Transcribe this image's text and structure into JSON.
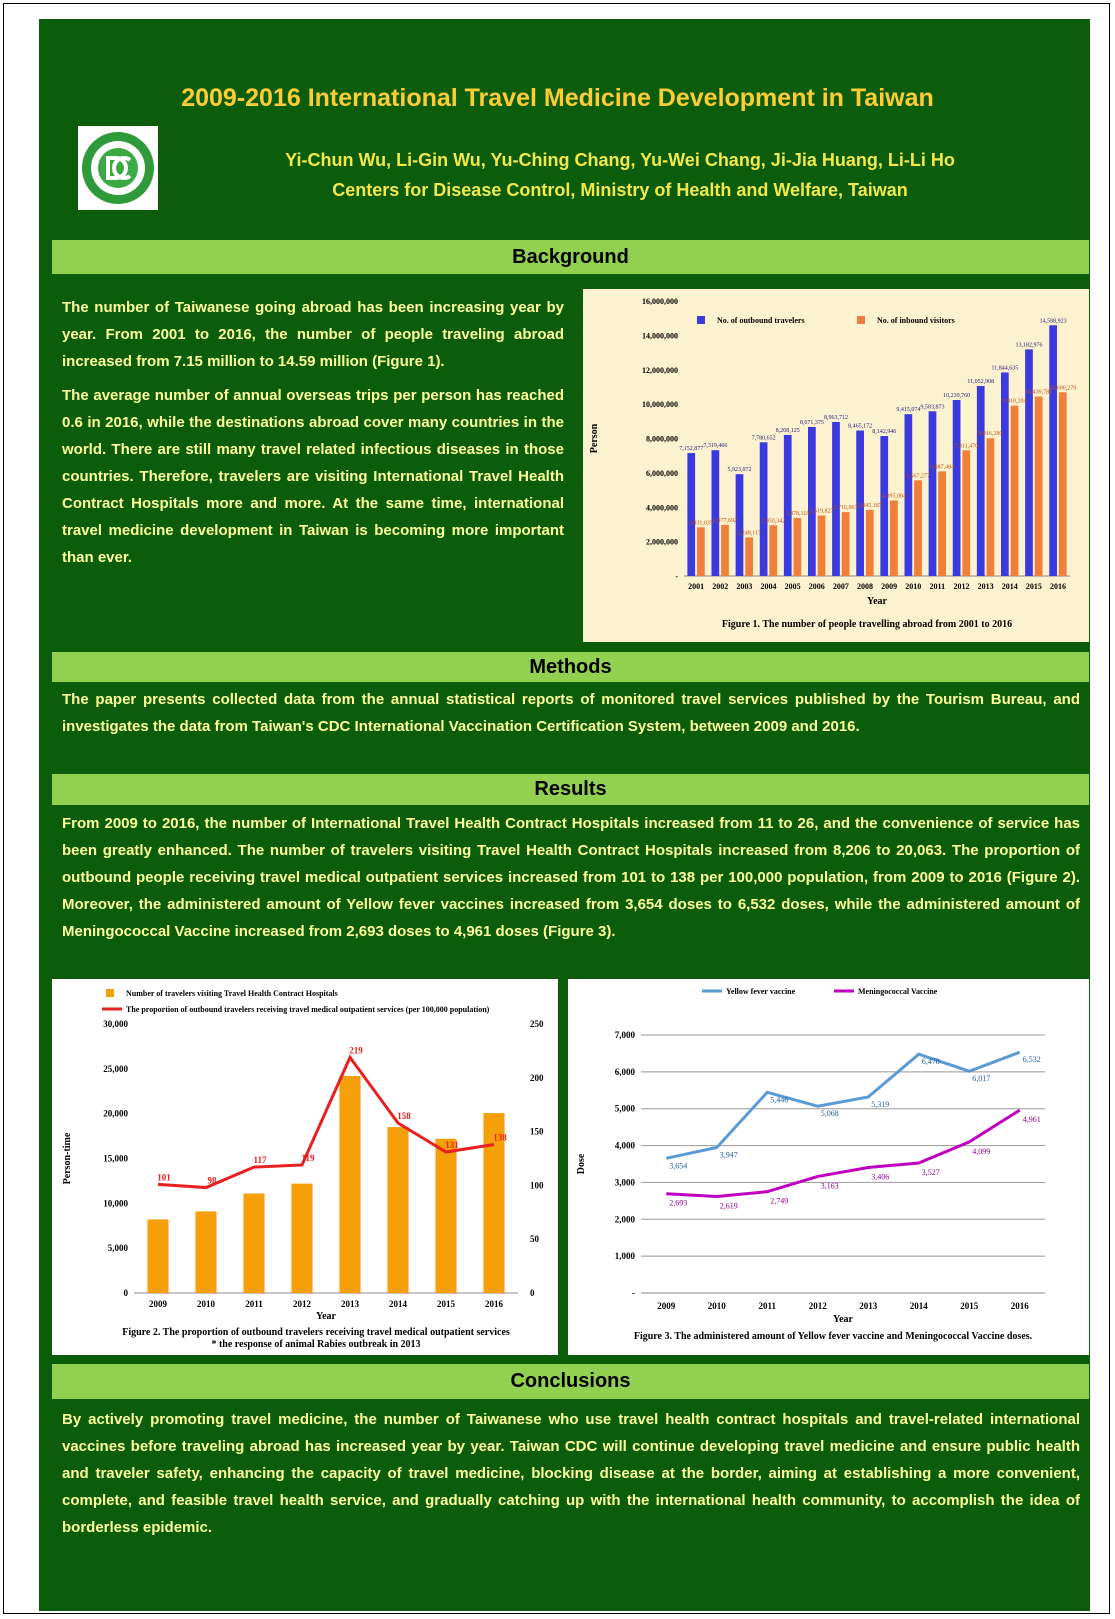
{
  "header": {
    "title": "2009-2016 International Travel Medicine Development in Taiwan",
    "authors": "Yi-Chun Wu, Li-Gin Wu, Yu-Ching Chang, Yu-Wei Chang, Ji-Jia Huang, Li-Li Ho",
    "affiliation": "Centers for Disease Control, Ministry of Health and Welfare, Taiwan"
  },
  "sections": [
    {
      "heading": "Background",
      "paragraphs": [
        "The number of Taiwanese going abroad has been increasing year by year. From 2001 to 2016, the number of people traveling abroad increased from 7.15 million to 14.59 million (Figure 1).",
        "The average number of annual overseas trips per person has reached 0.6 in 2016, while the destinations abroad cover many countries in the world. There are still many travel related infectious diseases in those countries. Therefore, travelers are visiting International Travel Health Contract Hospitals more and more. At the same time, international travel medicine development in Taiwan is becoming more important than ever."
      ]
    },
    {
      "heading": "Methods",
      "paragraphs": [
        "The paper presents collected data from the annual statistical reports of monitored travel services published by the Tourism Bureau, and investigates the data from Taiwan's CDC International Vaccination Certification System, between 2009 and 2016."
      ]
    },
    {
      "heading": "Results",
      "paragraphs": [
        "From 2009 to 2016, the number of International Travel Health Contract Hospitals increased from 11 to 26, and the convenience of service has been greatly enhanced. The number of travelers visiting Travel Health Contract Hospitals increased from 8,206 to 20,063. The proportion of outbound people receiving travel medical outpatient services increased from 101 to 138 per 100,000 population, from 2009 to 2016 (Figure 2). Moreover, the administered amount of Yellow fever vaccines increased from 3,654 doses to 6,532 doses, while the administered amount of Meningococcal Vaccine increased from 2,693 doses to 4,961 doses (Figure 3)."
      ]
    },
    {
      "heading": "Conclusions",
      "paragraphs": [
        "By actively promoting travel medicine, the number of Taiwanese who use travel health contract hospitals and travel-related international vaccines before traveling abroad has increased year by year. Taiwan CDC will continue developing travel medicine and ensure public health and traveler safety, enhancing the capacity of travel medicine, blocking disease at the border, aiming at establishing a more convenient, complete, and feasible travel health service, and gradually catching up with the international health community, to accomplish the idea of borderless epidemic."
      ]
    }
  ],
  "chart_data": [
    {
      "type": "bar",
      "caption": [
        "Figure 1.  The number of people travelling abroad from 2001 to 2016"
      ],
      "xlabel": "Year",
      "ylabel": "Person",
      "categories": [
        "2001",
        "2002",
        "2003",
        "2004",
        "2005",
        "2006",
        "2007",
        "2008",
        "2009",
        "2010",
        "2011",
        "2012",
        "2013",
        "2014",
        "2015",
        "2016"
      ],
      "series": [
        {
          "name": "No. of outbound travelers",
          "color": "#3a3ae0",
          "values": [
            7152877,
            7319466,
            5923072,
            7780652,
            8208125,
            8671375,
            8963712,
            8465172,
            8142946,
            9415074,
            9583873,
            10239760,
            11052908,
            11844635,
            13182976,
            14588923
          ],
          "value_labels": [
            "7,152,877",
            "7,319,466",
            "5,923,072",
            "7,780,652",
            "8,208,125",
            "8,671,375",
            "8,963,712",
            "8,465,172",
            "8,142,946",
            "9,415,074",
            "9,583,873",
            "10,239,760",
            "11,052,908",
            "11,844,635",
            "13,182,976",
            "14,588,923"
          ]
        },
        {
          "name": "No. of inbound visitors",
          "color": "#f07f3c",
          "values": [
            2831035,
            2977692,
            2248117,
            2950342,
            3378118,
            3519827,
            3716063,
            3845187,
            4395004,
            5567277,
            6087484,
            7311470,
            8016280,
            9910204,
            10439785,
            10690279
          ],
          "value_labels": [
            "2,831,035",
            "2,977,692",
            "2,248,117",
            "2,950,342",
            "3,378,118",
            "3,519,827",
            "3,716,063",
            "3,845,187",
            "4,395,004",
            "5,567,277",
            "6,087,484",
            "7,311,470",
            "8,016,280",
            "9,910,204",
            "10,439,785",
            "10,690,279"
          ]
        }
      ],
      "ylim": [
        0,
        16000000
      ],
      "yticks": [
        {
          "value": 0,
          "label": "-"
        },
        {
          "value": 2000000,
          "label": "2,000,000"
        },
        {
          "value": 4000000,
          "label": "4,000,000"
        },
        {
          "value": 6000000,
          "label": "6,000,000"
        },
        {
          "value": 8000000,
          "label": "8,000,000"
        },
        {
          "value": 10000000,
          "label": "10,000,000"
        },
        {
          "value": 12000000,
          "label": "12,000,000"
        },
        {
          "value": 14000000,
          "label": "14,000,000"
        },
        {
          "value": 16000000,
          "label": "16,000,000"
        }
      ],
      "grid": false,
      "legend": "top"
    },
    {
      "type": "bar_line",
      "caption": [
        "Figure 2. The proportion of outbound travelers receiving travel medical outpatient services",
        "* the response of animal Rabies outbreak in 2013"
      ],
      "xlabel": "Year",
      "ylabel": "Person-time",
      "categories": [
        "2009",
        "2010",
        "2011",
        "2012",
        "2013",
        "2014",
        "2015",
        "2016"
      ],
      "series": [
        {
          "name": "Number of travelers visiting Travel Health Contract Hospitals",
          "color": "#f5a00a",
          "values": [
            8206,
            9100,
            11100,
            12200,
            24200,
            18500,
            17200,
            20063
          ]
        },
        {
          "name": "The proportion of outbound travelers receiving travel medical outpatient services (per 100,000 population)",
          "color": "#e82020",
          "axis": "y2",
          "values": [
            101,
            98,
            117,
            119,
            219,
            158,
            131,
            138
          ]
        }
      ],
      "ylim": [
        0,
        30000
      ],
      "yticks": [
        0,
        {
          "value": 5000,
          "label": "5,000"
        },
        {
          "value": 10000,
          "label": "10,000"
        },
        {
          "value": 15000,
          "label": "15,000"
        },
        {
          "value": 20000,
          "label": "20,000"
        },
        {
          "value": 25000,
          "label": "25,000"
        },
        {
          "value": 30000,
          "label": "30,000"
        }
      ],
      "y2lim": [
        0,
        250
      ],
      "y2ticks": [
        0,
        50,
        100,
        150,
        200,
        250
      ],
      "grid": false,
      "legend": "top-left"
    },
    {
      "type": "line",
      "caption": [
        "Figure 3. The administered amount of Yellow fever vaccine and Meningococcal Vaccine doses."
      ],
      "xlabel": "Year",
      "ylabel": "Dose",
      "categories": [
        "2009",
        "2010",
        "2011",
        "2012",
        "2013",
        "2014",
        "2015",
        "2016"
      ],
      "series": [
        {
          "name": "Yellow fever vaccine",
          "color": "#5b9bd5",
          "values": [
            3654,
            3947,
            5446,
            5068,
            5319,
            6478,
            6017,
            6532
          ],
          "value_labels": [
            "3,654",
            "3,947",
            "5,446",
            "5,068",
            "5,319",
            "6,478",
            "6,017",
            "6,532"
          ]
        },
        {
          "name": "Meningococcal Vaccine",
          "color": "#c000c0",
          "values": [
            2693,
            2619,
            2749,
            3163,
            3406,
            3527,
            4099,
            4961
          ],
          "value_labels": [
            "2,693",
            "2,619",
            "2,749",
            "3,163",
            "3,406",
            "3,527",
            "4,099",
            "4,961"
          ]
        }
      ],
      "ylim": [
        0,
        7000
      ],
      "yticks": [
        {
          "value": 0,
          "label": "-"
        },
        {
          "value": 1000,
          "label": "1,000"
        },
        {
          "value": 2000,
          "label": "2,000"
        },
        {
          "value": 3000,
          "label": "3,000"
        },
        {
          "value": 4000,
          "label": "4,000"
        },
        {
          "value": 5000,
          "label": "5,000"
        },
        {
          "value": 6000,
          "label": "6,000"
        },
        {
          "value": 7000,
          "label": "7,000"
        }
      ],
      "grid": true,
      "legend": "top"
    }
  ]
}
